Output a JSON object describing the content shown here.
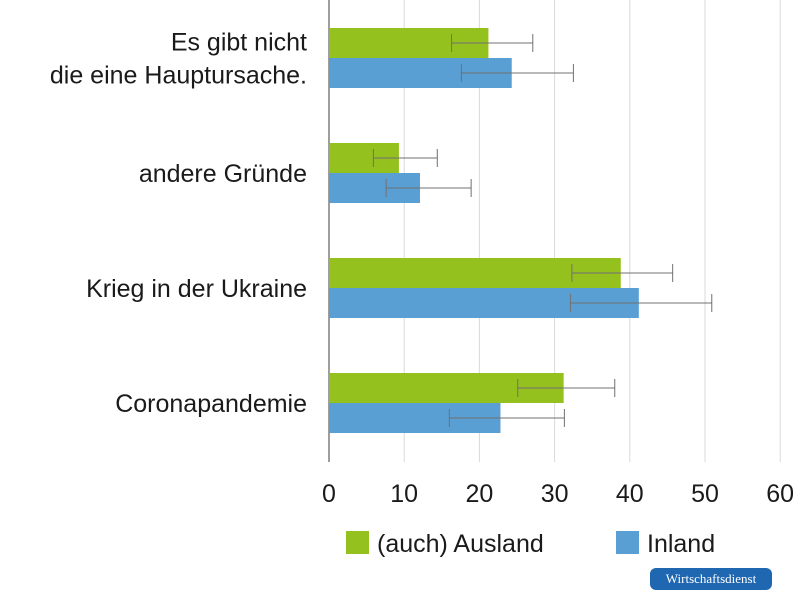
{
  "chart_data": {
    "type": "bar",
    "orientation": "horizontal",
    "title": "",
    "xlabel": "",
    "ylabel": "",
    "xlim": [
      0,
      60
    ],
    "xticks": [
      0,
      10,
      20,
      30,
      40,
      50,
      60
    ],
    "grid": true,
    "legend_position": "bottom",
    "categories": [
      "Es gibt nicht die eine Hauptursache.",
      "andere Gründe",
      "Krieg in der Ukraine",
      "Coronapandemie"
    ],
    "category_lines": [
      [
        "Es gibt nicht",
        "die eine Hauptursache."
      ],
      [
        "andere Gründe"
      ],
      [
        "Krieg in der Ukraine"
      ],
      [
        "Coronapandemie"
      ]
    ],
    "series": [
      {
        "name": "(auch) Ausland",
        "color": "#95c11f",
        "values": [
          21.2,
          9.3,
          38.8,
          31.2
        ],
        "error_low": [
          16.3,
          5.9,
          32.3,
          25.1
        ],
        "error_high": [
          27.1,
          14.4,
          45.7,
          38.0
        ]
      },
      {
        "name": "Inland",
        "color": "#5a9fd4",
        "values": [
          24.3,
          12.1,
          41.2,
          22.8
        ],
        "error_low": [
          17.6,
          7.6,
          32.1,
          16.0
        ],
        "error_high": [
          32.5,
          18.9,
          50.9,
          31.3
        ]
      }
    ]
  },
  "legend": {
    "ausland": "(auch) Ausland",
    "inland": "Inland"
  },
  "source_badge": "Wirtschaftsdienst"
}
